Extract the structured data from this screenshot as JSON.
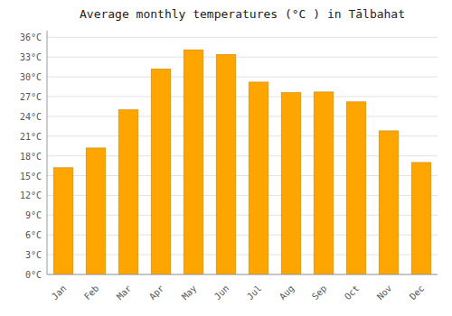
{
  "chart_data": {
    "type": "bar",
    "title": "Average monthly temperatures (°C ) in Tālbahat",
    "categories": [
      "Jan",
      "Feb",
      "Mar",
      "Apr",
      "May",
      "Jun",
      "Jul",
      "Aug",
      "Sep",
      "Oct",
      "Nov",
      "Dec"
    ],
    "values": [
      16.2,
      19.2,
      25.0,
      31.2,
      34.1,
      33.4,
      29.2,
      27.6,
      27.7,
      26.2,
      21.8,
      17.0
    ],
    "color": "#FFA500",
    "ylim": [
      0,
      37
    ],
    "yticks": [
      {
        "value": 0,
        "label": "0°C"
      },
      {
        "value": 3,
        "label": "3°C"
      },
      {
        "value": 6,
        "label": "6°C"
      },
      {
        "value": 9,
        "label": "9°C"
      },
      {
        "value": 12,
        "label": "12°C"
      },
      {
        "value": 15,
        "label": "15°C"
      },
      {
        "value": 18,
        "label": "18°C"
      },
      {
        "value": 21,
        "label": "21°C"
      },
      {
        "value": 24,
        "label": "24°C"
      },
      {
        "value": 27,
        "label": "27°C"
      },
      {
        "value": 30,
        "label": "30°C"
      },
      {
        "value": 33,
        "label": "33°C"
      },
      {
        "value": 36,
        "label": "36°C"
      }
    ],
    "grid": true
  }
}
